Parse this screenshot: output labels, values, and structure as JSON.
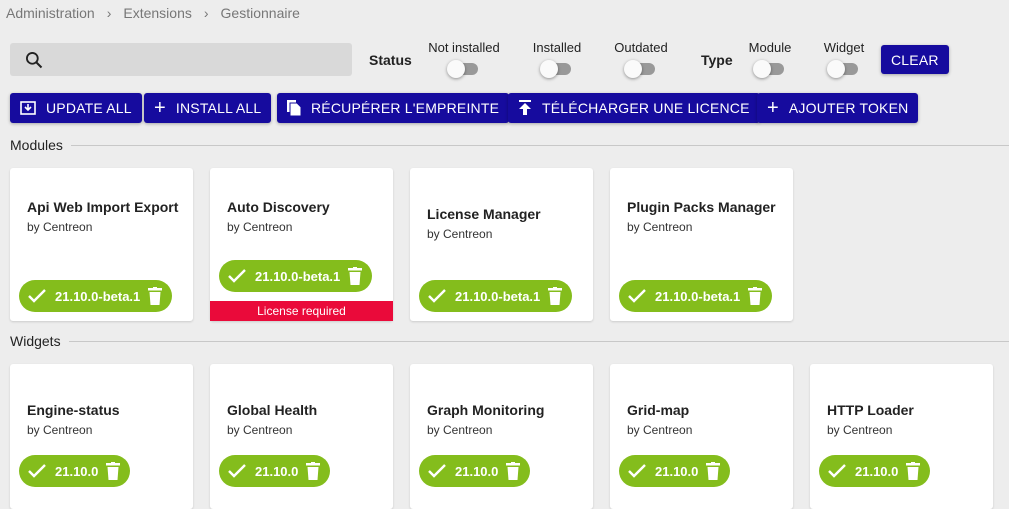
{
  "breadcrumb": [
    "Administration",
    "Extensions",
    "Gestionnaire"
  ],
  "search": {
    "placeholder": ""
  },
  "filters": {
    "status_label": "Status",
    "status": [
      "Not installed",
      "Installed",
      "Outdated"
    ],
    "type_label": "Type",
    "type": [
      "Module",
      "Widget"
    ],
    "clear": "CLEAR"
  },
  "actions": [
    "UPDATE ALL",
    "INSTALL ALL",
    "RÉCUPÉRER L'EMPREINTE",
    "TÉLÉCHARGER UNE LICENCE",
    "AJOUTER TOKEN"
  ],
  "modules": {
    "title": "Modules",
    "items": [
      {
        "name": "Api Web Import Export",
        "author": "by Centreon",
        "version": "21.10.0-beta.1"
      },
      {
        "name": "Auto Discovery",
        "author": "by Centreon",
        "version": "21.10.0-beta.1",
        "license": "License required"
      },
      {
        "name": "License Manager",
        "author": "by Centreon",
        "version": "21.10.0-beta.1"
      },
      {
        "name": "Plugin Packs Manager",
        "author": "by Centreon",
        "version": "21.10.0-beta.1"
      }
    ]
  },
  "widgets": {
    "title": "Widgets",
    "items": [
      {
        "name": "Engine-status",
        "author": "by Centreon",
        "version": "21.10.0"
      },
      {
        "name": "Global Health",
        "author": "by Centreon",
        "version": "21.10.0"
      },
      {
        "name": "Graph Monitoring",
        "author": "by Centreon",
        "version": "21.10.0"
      },
      {
        "name": "Grid-map",
        "author": "by Centreon",
        "version": "21.10.0"
      },
      {
        "name": "HTTP Loader",
        "author": "by Centreon",
        "version": "21.10.0"
      }
    ]
  },
  "colors": {
    "primary": "#160b9e",
    "installed": "#84bd1c",
    "license": "#ea0a3a"
  }
}
